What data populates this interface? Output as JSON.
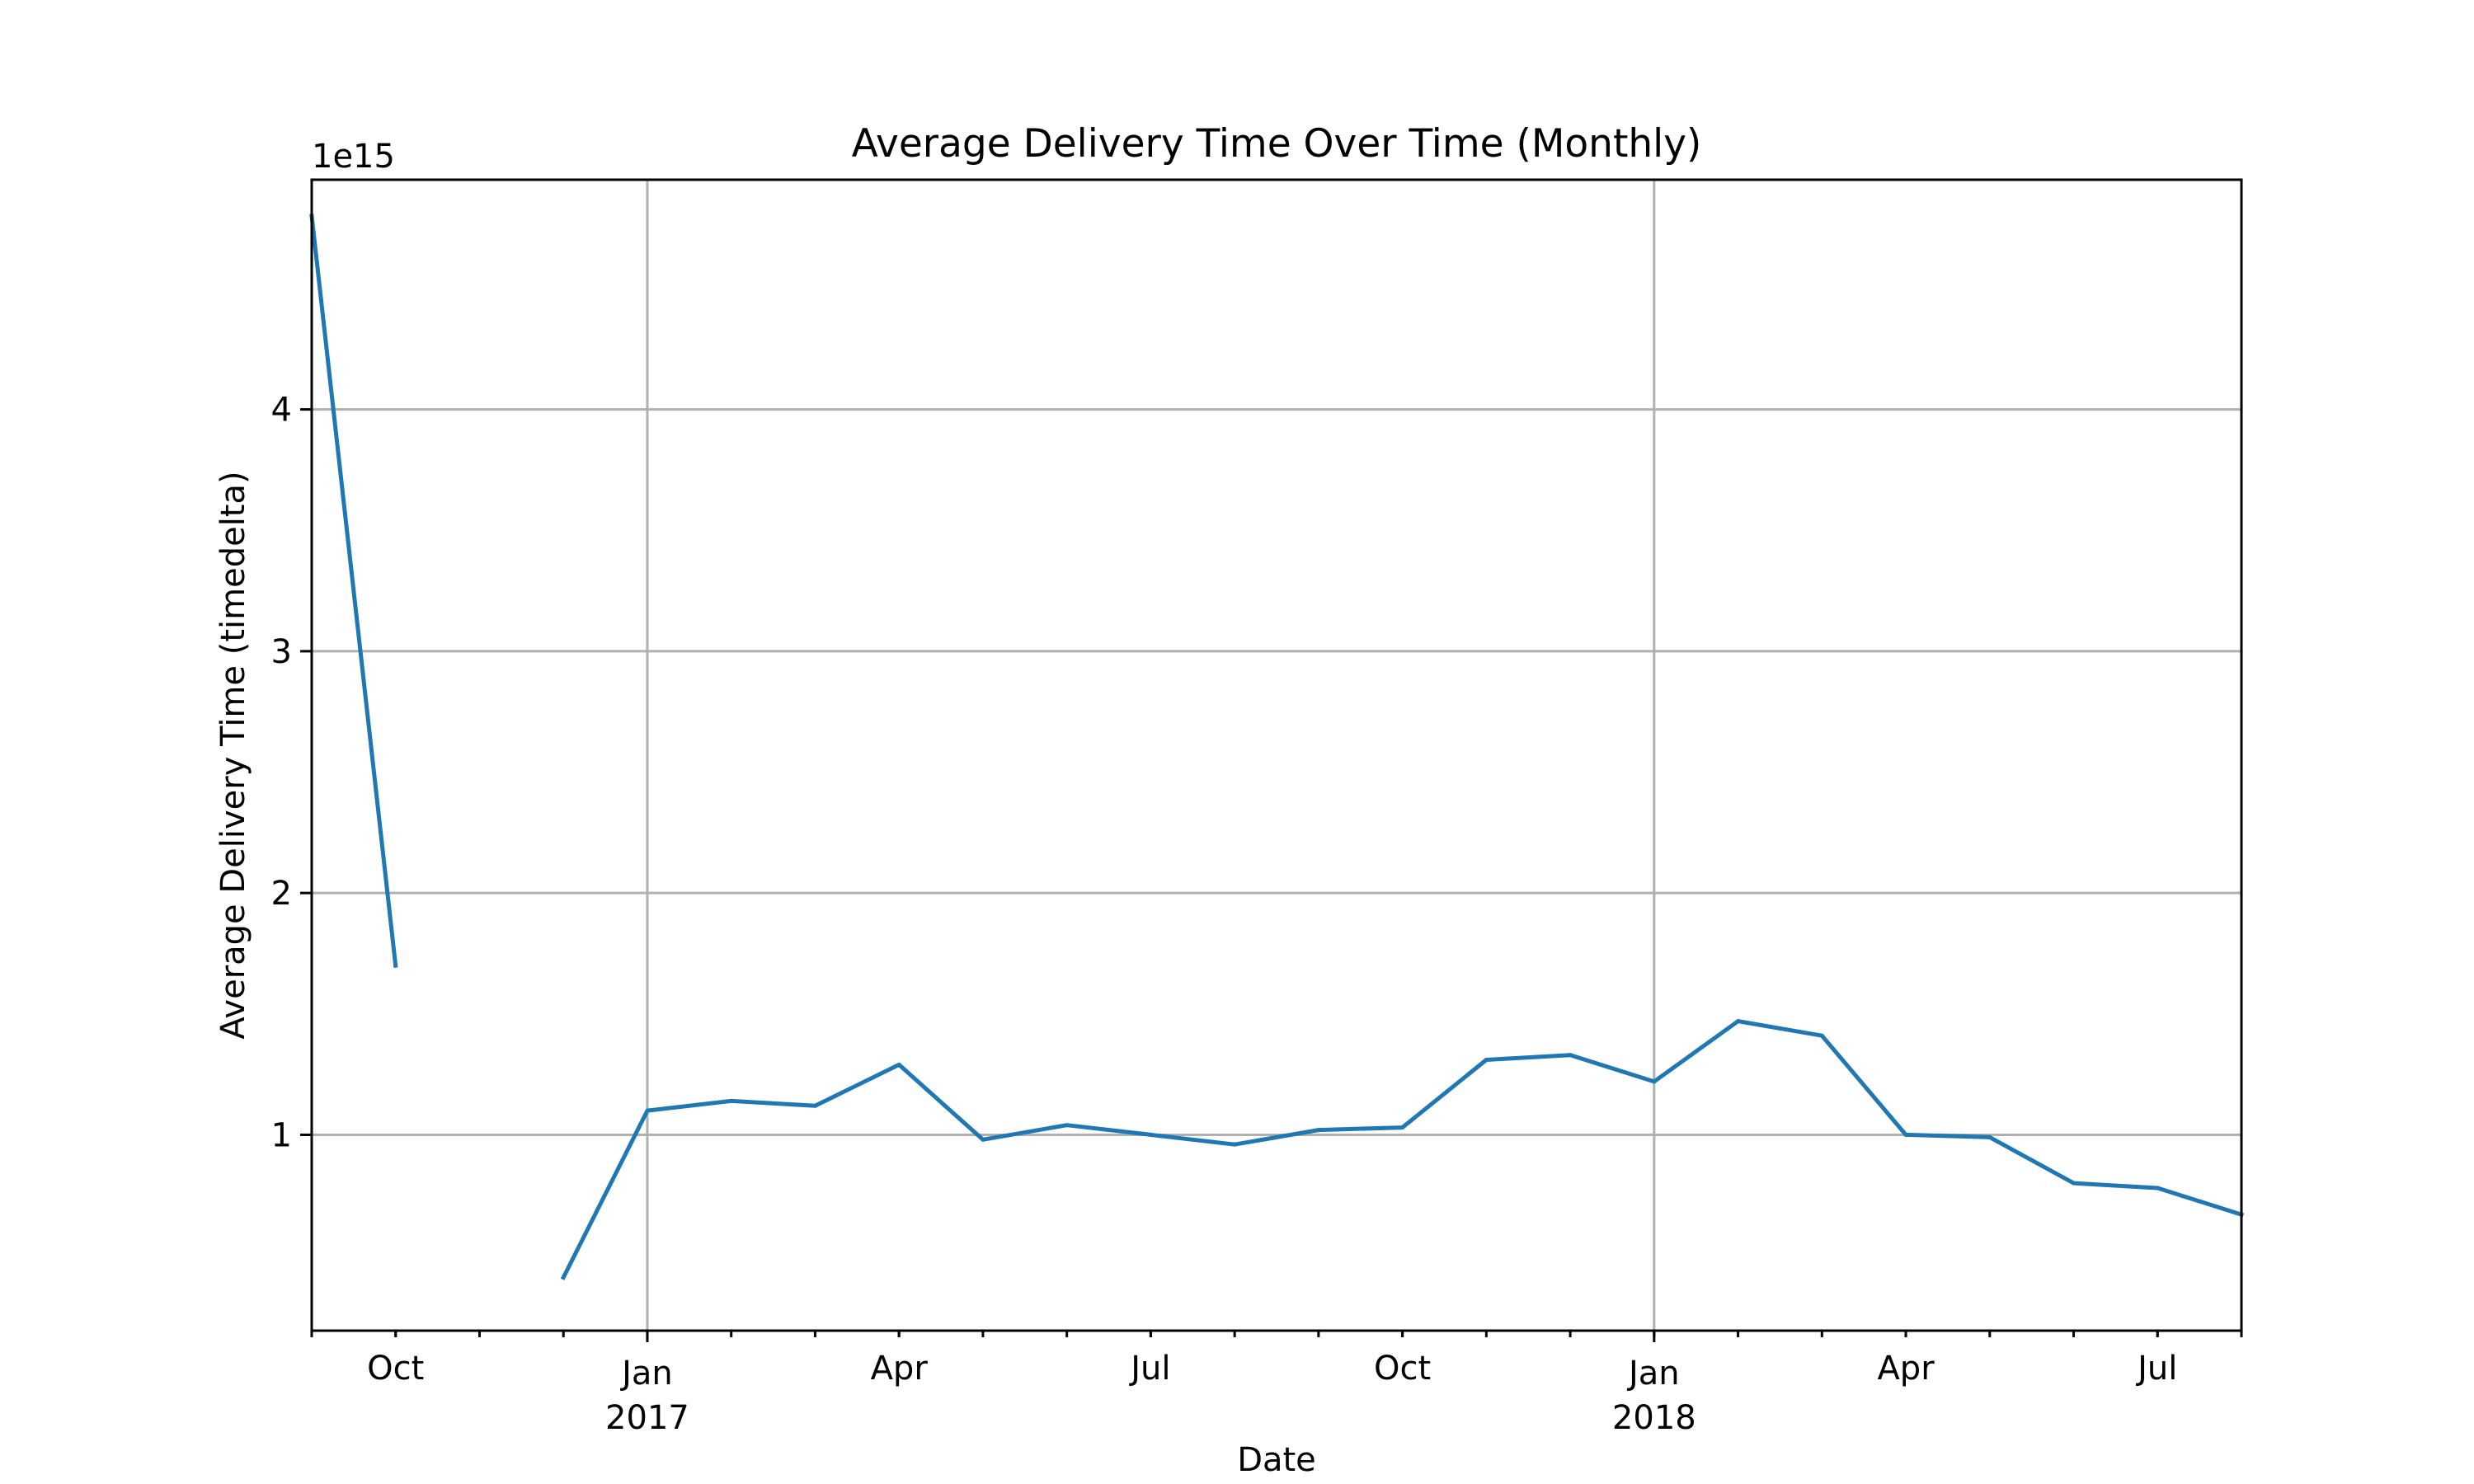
{
  "chart_data": {
    "type": "line",
    "title": "Average Delivery Time Over Time (Monthly)",
    "xlabel": "Date",
    "ylabel": "Average Delivery Time (timedelta)",
    "y_offset_label": "1e15",
    "grid": true,
    "legend": "none",
    "xlim": [
      "2016-09",
      "2018-08"
    ],
    "ylim": [
      0.19,
      4.95
    ],
    "y_scale_factor": 1000000000000000.0,
    "x_ticks": [
      {
        "x": "2016-10",
        "label": "Oct",
        "sublabel": ""
      },
      {
        "x": "2017-01",
        "label": "Jan",
        "sublabel": "2017"
      },
      {
        "x": "2017-04",
        "label": "Apr",
        "sublabel": ""
      },
      {
        "x": "2017-07",
        "label": "Jul",
        "sublabel": ""
      },
      {
        "x": "2017-10",
        "label": "Oct",
        "sublabel": ""
      },
      {
        "x": "2018-01",
        "label": "Jan",
        "sublabel": "2018"
      },
      {
        "x": "2018-04",
        "label": "Apr",
        "sublabel": ""
      },
      {
        "x": "2018-07",
        "label": "Jul",
        "sublabel": ""
      }
    ],
    "y_ticks": [
      1,
      2,
      3,
      4
    ],
    "series": [
      {
        "color": "#1f77b4",
        "x": [
          "2016-09",
          "2016-10",
          "2016-11",
          "2016-12",
          "2017-01",
          "2017-02",
          "2017-03",
          "2017-04",
          "2017-05",
          "2017-06",
          "2017-07",
          "2017-08",
          "2017-09",
          "2017-10",
          "2017-11",
          "2017-12",
          "2018-01",
          "2018-02",
          "2018-03",
          "2018-04",
          "2018-05",
          "2018-06",
          "2018-07",
          "2018-08"
        ],
        "values": [
          4.8,
          1.7,
          null,
          0.41,
          1.1,
          1.14,
          1.12,
          1.29,
          0.98,
          1.04,
          1.0,
          0.96,
          1.02,
          1.03,
          1.31,
          1.33,
          1.22,
          1.47,
          1.41,
          1.0,
          0.99,
          0.8,
          0.78,
          0.67
        ]
      }
    ]
  }
}
